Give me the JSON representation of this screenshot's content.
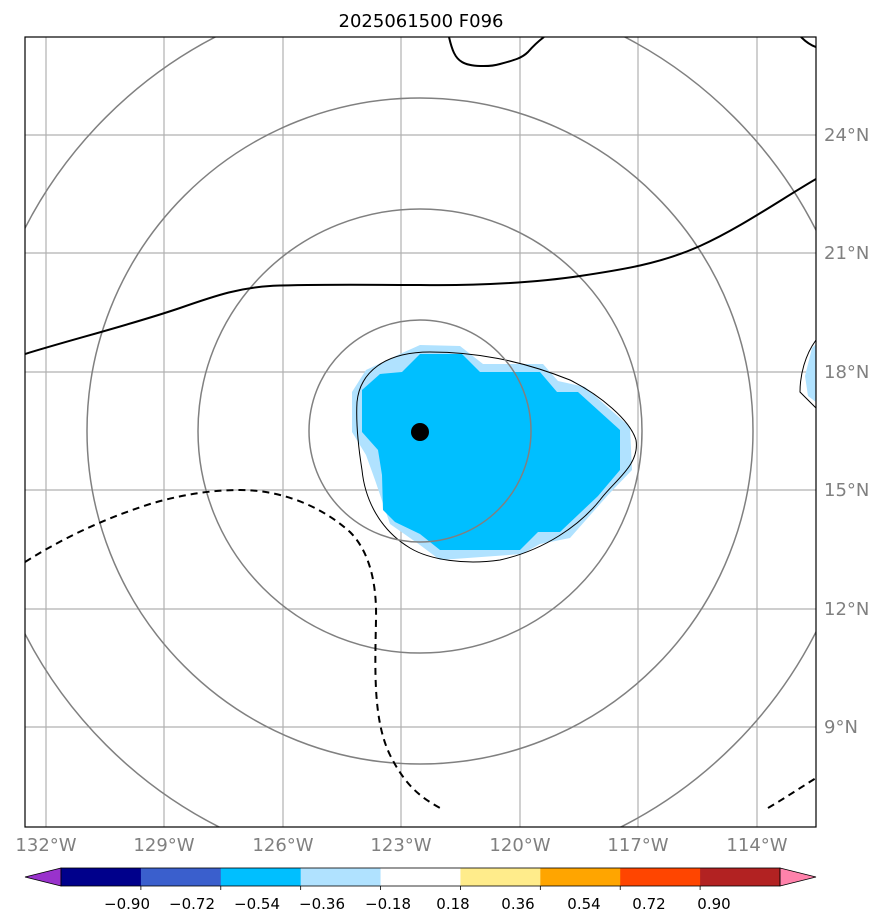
{
  "map": {
    "title": "2025061500 F096",
    "longitude_labels": [
      "132°W",
      "129°W",
      "126°W",
      "123°W",
      "120°W",
      "117°W",
      "114°W"
    ],
    "latitude_labels": [
      "24°N",
      "21°N",
      "18°N",
      "15°N",
      "12°N",
      "9°N"
    ],
    "colors": {
      "grid": "#b0b0b0",
      "range_rings": "#808080",
      "contour": "#000000",
      "shading_strong": "#00bfff",
      "shading_light": "#b0e2ff",
      "storm_center": "#000000"
    },
    "colorbar": {
      "ticks": [
        "−0.90",
        "−0.72",
        "−0.54",
        "−0.36",
        "−0.18",
        "0.18",
        "0.36",
        "0.54",
        "0.72",
        "0.90"
      ],
      "colors": [
        "#9932cc",
        "#00008b",
        "#3a5fcd",
        "#00bfff",
        "#b0e2ff",
        "#ffffff",
        "#ffec8b",
        "#ffa500",
        "#ff4500",
        "#b22222",
        "#ff82ab"
      ]
    }
  }
}
